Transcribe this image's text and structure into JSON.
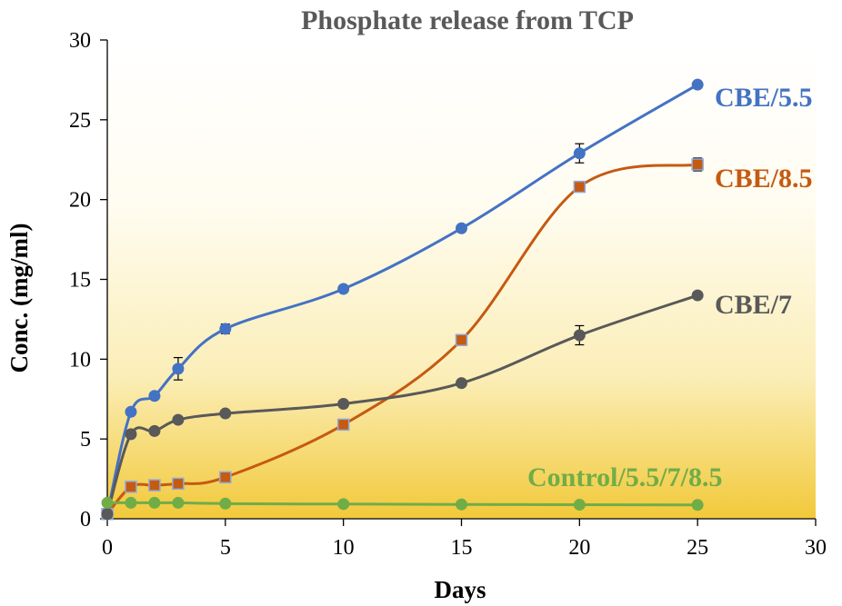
{
  "chart_data": {
    "type": "line",
    "title": "Phosphate release from TCP",
    "xlabel": "Days",
    "ylabel": "Conc. (mg/ml)",
    "xlim": [
      0,
      30
    ],
    "ylim": [
      0,
      30
    ],
    "xticks": [
      0,
      5,
      10,
      15,
      20,
      25,
      30
    ],
    "yticks": [
      0,
      5,
      10,
      15,
      20,
      25,
      30
    ],
    "grid": false,
    "series": [
      {
        "name": "CBE/5.5",
        "label": "CBE/5.5",
        "color": "#4472C4",
        "marker": "circle",
        "x": [
          0,
          1,
          2,
          3,
          5,
          10,
          15,
          20,
          25
        ],
        "y": [
          0.3,
          6.7,
          7.7,
          9.4,
          11.9,
          14.4,
          18.2,
          22.9,
          27.2
        ],
        "err": [
          0,
          0.2,
          0.2,
          0.7,
          0.3,
          0.2,
          0.2,
          0.6,
          0.2
        ]
      },
      {
        "name": "CBE/8.5",
        "label": "CBE/8.5",
        "color": "#C55A11",
        "marker": "square",
        "x": [
          0,
          1,
          2,
          3,
          5,
          10,
          15,
          20,
          25
        ],
        "y": [
          0.3,
          2.0,
          2.1,
          2.2,
          2.6,
          5.9,
          11.2,
          20.8,
          22.2
        ],
        "err": [
          0,
          0.1,
          0.1,
          0.1,
          0.1,
          0.1,
          0.2,
          0.2,
          0.4
        ]
      },
      {
        "name": "CBE/7",
        "label": "CBE/7",
        "color": "#595959",
        "marker": "circle",
        "x": [
          0,
          1,
          2,
          3,
          5,
          10,
          15,
          20,
          25
        ],
        "y": [
          0.3,
          5.3,
          5.5,
          6.2,
          6.6,
          7.2,
          8.5,
          11.5,
          14.0
        ],
        "err": [
          0,
          0.1,
          0.1,
          0.1,
          0.1,
          0.1,
          0.1,
          0.6,
          0.1
        ]
      },
      {
        "name": "Control/5.5/7/8.5",
        "label": "Control/5.5/7/8.5",
        "color": "#70AD47",
        "marker": "circle",
        "x": [
          0,
          1,
          2,
          3,
          5,
          10,
          15,
          20,
          25
        ],
        "y": [
          1.0,
          1.0,
          1.0,
          1.0,
          0.95,
          0.92,
          0.9,
          0.88,
          0.87
        ],
        "err": [
          0,
          0,
          0,
          0,
          0,
          0,
          0,
          0,
          0
        ]
      }
    ]
  }
}
